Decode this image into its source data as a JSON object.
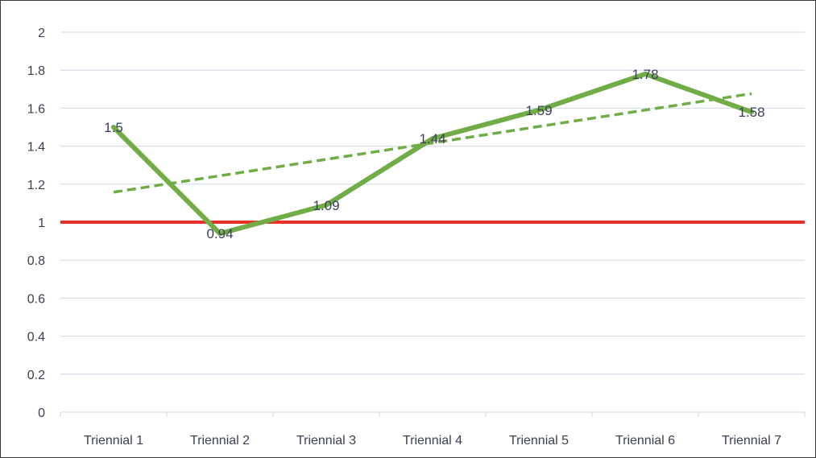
{
  "chart_data": {
    "type": "line",
    "title": "",
    "xlabel": "",
    "ylabel": "",
    "categories": [
      "Triennial 1",
      "Triennial 2",
      "Triennial 3",
      "Triennial 4",
      "Triennial 5",
      "Triennial 6",
      "Triennial 7"
    ],
    "series": [
      {
        "values": [
          1.5,
          0.94,
          1.09,
          1.44,
          1.59,
          1.78,
          1.58
        ],
        "data_labels": [
          "1.5",
          "0.94",
          "1.09",
          "1.44",
          "1.59",
          "1.78",
          "1.58"
        ],
        "color": "#70ad47"
      }
    ],
    "trendline": {
      "type": "linear",
      "style": "dashed",
      "color": "#70ad47"
    },
    "reference_line": {
      "y": 1,
      "color": "#e8302a"
    },
    "ylim": [
      0,
      2
    ],
    "yticks": [
      "0",
      "0.2",
      "0.4",
      "0.6",
      "0.8",
      "1",
      "1.2",
      "1.4",
      "1.6",
      "1.8",
      "2"
    ],
    "grid": true,
    "grid_color": "#d0dae5",
    "legend": "none"
  }
}
